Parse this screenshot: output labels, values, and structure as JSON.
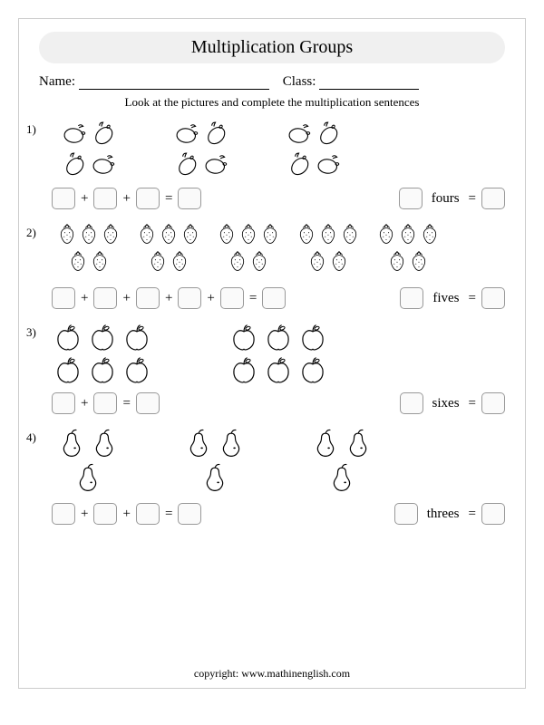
{
  "title": "Multiplication Groups",
  "name_label": "Name:",
  "class_label": "Class:",
  "instruction": "Look at the pictures and complete the multiplication sentences",
  "problems": [
    {
      "number": "1)",
      "fruit": "lemon",
      "groups": 3,
      "per_group": 4,
      "group_layout": "cluster4",
      "add_boxes": 3,
      "word": "fours"
    },
    {
      "number": "2)",
      "fruit": "strawberry",
      "groups": 5,
      "per_group": 5,
      "group_layout": "cluster5",
      "add_boxes": 5,
      "word": "fives"
    },
    {
      "number": "3)",
      "fruit": "apple",
      "groups": 2,
      "per_group": 6,
      "group_layout": "grid3x2",
      "add_boxes": 2,
      "word": "sixes"
    },
    {
      "number": "4)",
      "fruit": "pear",
      "groups": 3,
      "per_group": 3,
      "group_layout": "tri3",
      "add_boxes": 3,
      "word": "threes"
    }
  ],
  "copyright": "copyright:    www.mathinenglish.com",
  "colors": {
    "page_border": "#cccccc",
    "pill_bg": "#f0f0f0",
    "box_border": "#999999",
    "box_bg": "#fafafa",
    "stroke": "#000000"
  }
}
